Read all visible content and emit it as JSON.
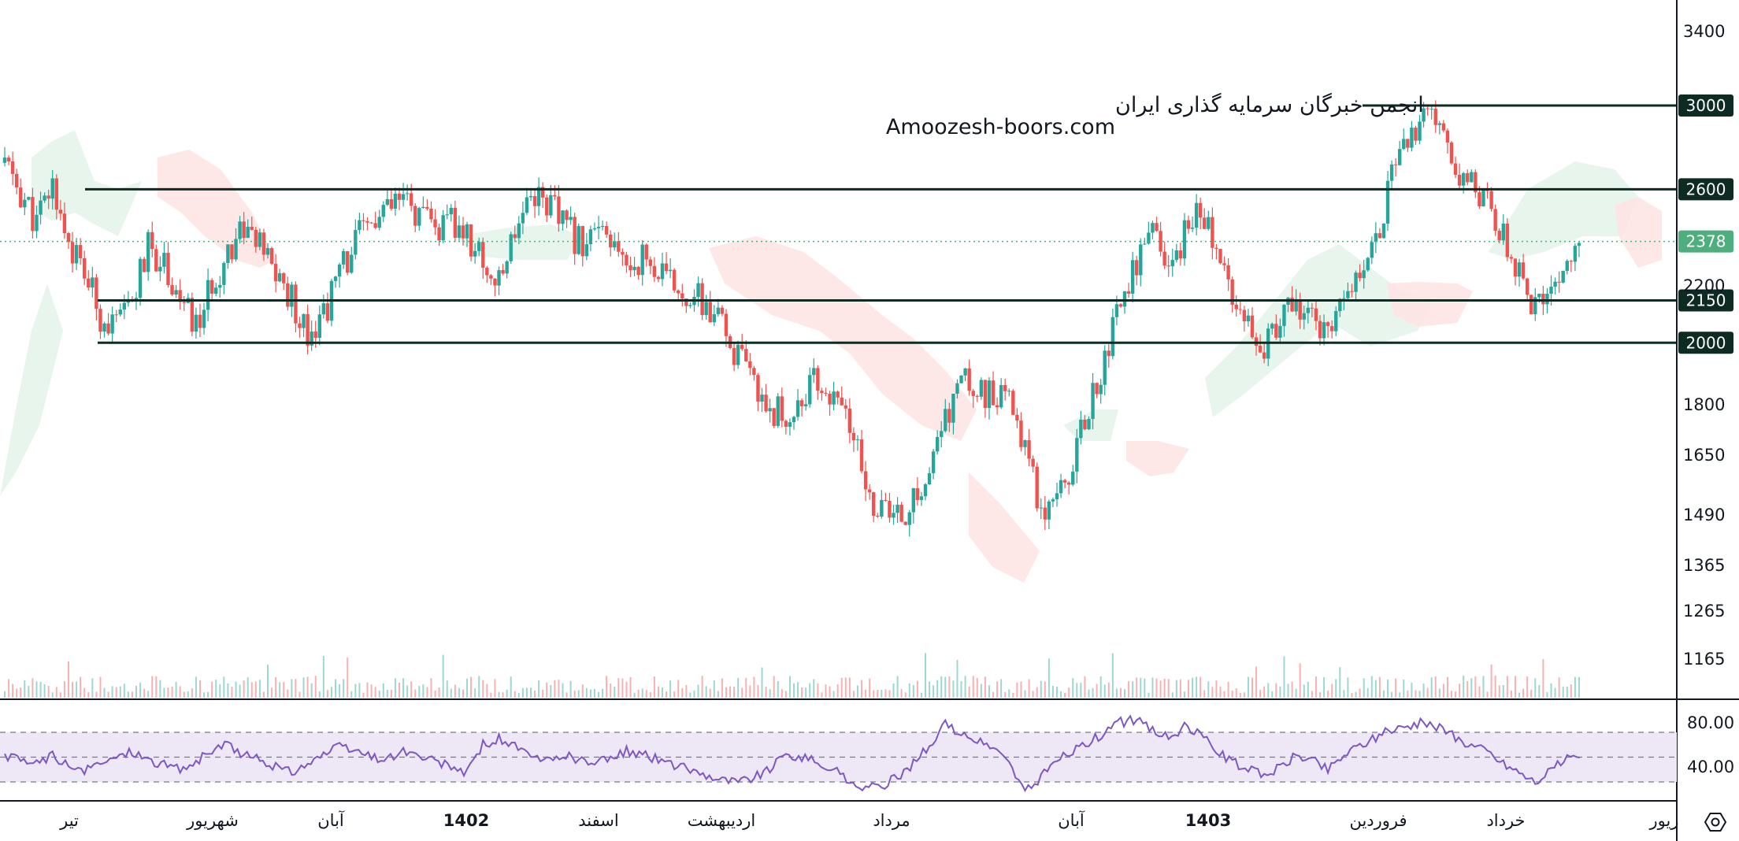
{
  "watermark": {
    "line1": "انجمن خبرگان سرمایه گذاری ایران",
    "line2": "Amoozesh-boors.com"
  },
  "colors": {
    "up": "#26a69a",
    "down": "#ef5350",
    "level_line": "#0d2b22",
    "current_price": "#4caf7d",
    "cloud_bull": "#e6f4ea",
    "cloud_bear": "#fde4e4",
    "rsi_line": "#7e57c2",
    "rsi_band": "#ede7f6"
  },
  "settings_icon": "hexagon-gear-icon",
  "chart_data": {
    "type": "candlestick",
    "price_axis": {
      "scale": "log",
      "range": [
        1120,
        3600
      ],
      "ticks": [
        "3400",
        "1800",
        "1650",
        "1490",
        "1365",
        "1265",
        "1165"
      ],
      "partially_hidden_tick": "2200"
    },
    "current_price": "2378",
    "horizontal_levels": [
      {
        "price": 3000,
        "label": "3000"
      },
      {
        "price": 2600,
        "label": "2600"
      },
      {
        "price": 2150,
        "label": "2150"
      },
      {
        "price": 2000,
        "label": "2000"
      }
    ],
    "time_axis": {
      "labels": [
        "تیر",
        "شهریور",
        "آبان",
        "1402",
        "اسفند",
        "اردیبهشت",
        "مرداد",
        "آبان",
        "1403",
        "فروردین",
        "خرداد",
        "ریور"
      ],
      "bold_labels": [
        "1402",
        "1403"
      ]
    },
    "close_series_estimated": [
      2720,
      2580,
      2450,
      2620,
      2380,
      2250,
      2100,
      2050,
      2150,
      2350,
      2300,
      2150,
      2050,
      2200,
      2350,
      2450,
      2350,
      2250,
      2150,
      2050,
      2100,
      2250,
      2380,
      2450,
      2500,
      2550,
      2480,
      2420,
      2450,
      2400,
      2300,
      2200,
      2450,
      2600,
      2550,
      2450,
      2380,
      2420,
      2350,
      2280,
      2320,
      2250,
      2200,
      2180,
      2120,
      2050,
      1950,
      1850,
      1800,
      1750,
      1820,
      1880,
      1800,
      1750,
      1550,
      1500,
      1480,
      1520,
      1600,
      1750,
      1880,
      1850,
      1820,
      1800,
      1700,
      1500,
      1580,
      1620,
      1800,
      1950,
      2150,
      2300,
      2400,
      2250,
      2400,
      2550,
      2300,
      2200,
      2100,
      2000,
      2050,
      2150,
      2100,
      2000,
      2150,
      2300,
      2400,
      2650,
      2800,
      2950,
      2850,
      2700,
      2650,
      2550,
      2400,
      2250,
      2100,
      2200,
      2300,
      2378
    ],
    "rsi": {
      "levels": [
        "80.00",
        "40.00"
      ],
      "band": [
        30,
        70
      ],
      "mid": 50,
      "series_estimated": [
        50,
        48,
        45,
        52,
        42,
        38,
        45,
        50,
        55,
        48,
        44,
        40,
        46,
        55,
        60,
        52,
        48,
        42,
        38,
        45,
        52,
        58,
        55,
        50,
        48,
        55,
        50,
        46,
        42,
        38,
        60,
        65,
        58,
        50,
        46,
        52,
        48,
        44,
        50,
        55,
        52,
        48,
        44,
        40,
        36,
        32,
        30,
        34,
        40,
        52,
        50,
        45,
        40,
        30,
        25,
        26,
        34,
        45,
        60,
        76,
        70,
        62,
        58,
        45,
        22,
        34,
        48,
        55,
        62,
        70,
        78,
        80,
        72,
        66,
        74,
        68,
        56,
        46,
        40,
        36,
        42,
        52,
        48,
        40,
        52,
        60,
        66,
        72,
        76,
        78,
        74,
        66,
        60,
        55,
        45,
        38,
        30,
        40,
        48,
        55
      ]
    }
  }
}
